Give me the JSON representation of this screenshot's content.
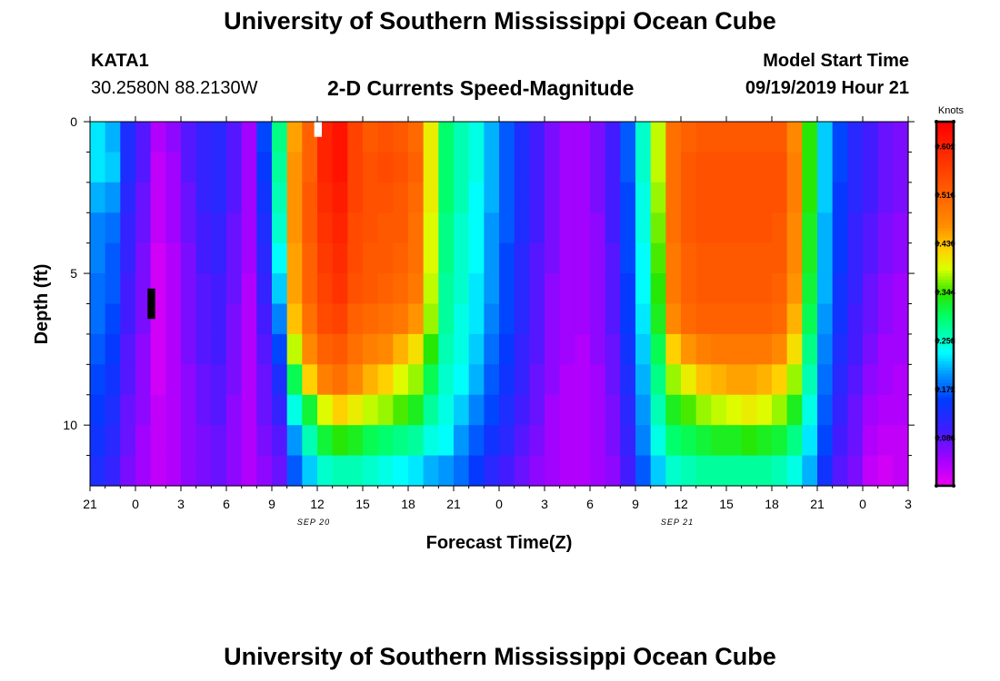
{
  "header": {
    "title": "University of Southern Mississippi Ocean Cube",
    "station_id": "KATA1",
    "coordinates": "30.2580N 88.2130W",
    "subtitle": "2-D Currents Speed-Magnitude",
    "model_start_label": "Model Start Time",
    "model_start_value": "09/19/2019 Hour 21"
  },
  "footer": {
    "title": "University of Southern Mississippi Ocean Cube"
  },
  "chart_data": {
    "type": "heatmap",
    "title": "2-D Currents Speed-Magnitude",
    "xlabel": "Forecast Time(Z)",
    "ylabel": "Depth (ft)",
    "x_range_hours": [
      0,
      54
    ],
    "x_ticks": [
      {
        "h": 0,
        "label": "21"
      },
      {
        "h": 3,
        "label": "0"
      },
      {
        "h": 6,
        "label": "3"
      },
      {
        "h": 9,
        "label": "6"
      },
      {
        "h": 12,
        "label": "9"
      },
      {
        "h": 15,
        "label": "12"
      },
      {
        "h": 18,
        "label": "15"
      },
      {
        "h": 21,
        "label": "18"
      },
      {
        "h": 24,
        "label": "21"
      },
      {
        "h": 27,
        "label": "0"
      },
      {
        "h": 30,
        "label": "3"
      },
      {
        "h": 33,
        "label": "6"
      },
      {
        "h": 36,
        "label": "9"
      },
      {
        "h": 39,
        "label": "12"
      },
      {
        "h": 42,
        "label": "15"
      },
      {
        "h": 45,
        "label": "18"
      },
      {
        "h": 48,
        "label": "21"
      },
      {
        "h": 51,
        "label": "0"
      },
      {
        "h": 54,
        "label": "3"
      }
    ],
    "date_labels": [
      {
        "h": 15,
        "label": "SEP 20"
      },
      {
        "h": 39,
        "label": "SEP 21"
      }
    ],
    "y_range_ft": [
      0,
      12
    ],
    "y_ticks": [
      {
        "v": 0,
        "label": "0"
      },
      {
        "v": 5,
        "label": "5"
      },
      {
        "v": 10,
        "label": "10"
      }
    ],
    "colorbar": {
      "unit": "Knots",
      "range": [
        0.0,
        0.645
      ],
      "ticks": [
        0.086,
        0.172,
        0.258,
        0.344,
        0.43,
        0.516,
        0.602
      ],
      "tick_labels": [
        "0.086",
        "0.172",
        "0.258",
        "0.344",
        "0.430",
        "0.516",
        "0.602"
      ]
    },
    "grid": false,
    "column_hours": 1,
    "depth_levels": 12,
    "columns_description": "Each inner array is one hourly column (hour 0 = 21Z Sep 19), 12 depth cells from surface (0 ft) to bottom (12 ft), speeds in knots.",
    "values": [
      [
        0.23,
        0.23,
        0.21,
        0.19,
        0.19,
        0.18,
        0.18,
        0.17,
        0.16,
        0.15,
        0.14,
        0.13
      ],
      [
        0.21,
        0.22,
        0.2,
        0.18,
        0.17,
        0.17,
        0.16,
        0.15,
        0.14,
        0.13,
        0.12,
        0.11
      ],
      [
        0.13,
        0.13,
        0.12,
        0.11,
        0.11,
        0.1,
        0.1,
        0.09,
        0.09,
        0.08,
        0.08,
        0.07
      ],
      [
        0.09,
        0.09,
        0.08,
        0.08,
        0.07,
        0.07,
        0.07,
        0.06,
        0.06,
        0.06,
        0.05,
        0.05
      ],
      [
        0.04,
        0.03,
        0.03,
        0.03,
        0.02,
        0.02,
        0.02,
        0.02,
        0.02,
        0.03,
        0.03,
        0.03
      ],
      [
        0.06,
        0.05,
        0.05,
        0.05,
        0.04,
        0.04,
        0.04,
        0.04,
        0.04,
        0.04,
        0.04,
        0.04
      ],
      [
        0.09,
        0.09,
        0.08,
        0.08,
        0.07,
        0.07,
        0.07,
        0.07,
        0.06,
        0.06,
        0.06,
        0.06
      ],
      [
        0.11,
        0.11,
        0.11,
        0.1,
        0.1,
        0.09,
        0.09,
        0.09,
        0.08,
        0.08,
        0.07,
        0.07
      ],
      [
        0.12,
        0.12,
        0.12,
        0.11,
        0.11,
        0.1,
        0.1,
        0.1,
        0.09,
        0.09,
        0.08,
        0.08
      ],
      [
        0.09,
        0.09,
        0.09,
        0.08,
        0.08,
        0.08,
        0.07,
        0.07,
        0.07,
        0.06,
        0.06,
        0.06
      ],
      [
        0.05,
        0.05,
        0.05,
        0.05,
        0.05,
        0.04,
        0.04,
        0.04,
        0.04,
        0.04,
        0.04,
        0.04
      ],
      [
        0.16,
        0.15,
        0.14,
        0.13,
        0.12,
        0.11,
        0.1,
        0.09,
        0.08,
        0.08,
        0.07,
        0.06
      ],
      [
        0.29,
        0.28,
        0.27,
        0.26,
        0.24,
        0.22,
        0.19,
        0.16,
        0.13,
        0.11,
        0.09,
        0.08
      ],
      [
        0.45,
        0.46,
        0.46,
        0.46,
        0.45,
        0.45,
        0.43,
        0.38,
        0.31,
        0.25,
        0.2,
        0.17
      ],
      [
        0.52,
        0.52,
        0.53,
        0.53,
        0.52,
        0.52,
        0.5,
        0.47,
        0.42,
        0.32,
        0.27,
        0.22
      ],
      [
        0.6,
        0.6,
        0.59,
        0.58,
        0.57,
        0.56,
        0.55,
        0.52,
        0.48,
        0.39,
        0.32,
        0.26
      ],
      [
        0.62,
        0.62,
        0.61,
        0.6,
        0.59,
        0.58,
        0.56,
        0.53,
        0.5,
        0.42,
        0.34,
        0.27
      ],
      [
        0.56,
        0.56,
        0.56,
        0.55,
        0.55,
        0.54,
        0.52,
        0.5,
        0.47,
        0.4,
        0.33,
        0.27
      ],
      [
        0.53,
        0.54,
        0.54,
        0.54,
        0.53,
        0.53,
        0.51,
        0.48,
        0.44,
        0.38,
        0.31,
        0.26
      ],
      [
        0.54,
        0.55,
        0.54,
        0.53,
        0.53,
        0.52,
        0.5,
        0.47,
        0.42,
        0.37,
        0.3,
        0.25
      ],
      [
        0.53,
        0.54,
        0.53,
        0.53,
        0.52,
        0.51,
        0.49,
        0.44,
        0.39,
        0.35,
        0.29,
        0.24
      ],
      [
        0.51,
        0.52,
        0.51,
        0.5,
        0.5,
        0.49,
        0.46,
        0.41,
        0.37,
        0.33,
        0.28,
        0.23
      ],
      [
        0.4,
        0.4,
        0.4,
        0.39,
        0.39,
        0.38,
        0.37,
        0.34,
        0.31,
        0.28,
        0.25,
        0.21
      ],
      [
        0.3,
        0.3,
        0.3,
        0.29,
        0.29,
        0.28,
        0.28,
        0.27,
        0.26,
        0.25,
        0.24,
        0.2
      ],
      [
        0.27,
        0.27,
        0.27,
        0.26,
        0.26,
        0.26,
        0.25,
        0.25,
        0.24,
        0.22,
        0.2,
        0.18
      ],
      [
        0.25,
        0.25,
        0.24,
        0.24,
        0.24,
        0.23,
        0.23,
        0.22,
        0.21,
        0.19,
        0.17,
        0.15
      ],
      [
        0.21,
        0.21,
        0.21,
        0.2,
        0.2,
        0.2,
        0.19,
        0.18,
        0.17,
        0.16,
        0.14,
        0.12
      ],
      [
        0.17,
        0.17,
        0.17,
        0.17,
        0.16,
        0.16,
        0.16,
        0.15,
        0.14,
        0.13,
        0.12,
        0.1
      ],
      [
        0.13,
        0.13,
        0.13,
        0.13,
        0.12,
        0.12,
        0.12,
        0.11,
        0.11,
        0.1,
        0.09,
        0.08
      ],
      [
        0.1,
        0.1,
        0.1,
        0.1,
        0.09,
        0.09,
        0.09,
        0.09,
        0.08,
        0.08,
        0.07,
        0.06
      ],
      [
        0.07,
        0.07,
        0.07,
        0.07,
        0.07,
        0.06,
        0.06,
        0.06,
        0.06,
        0.05,
        0.05,
        0.05
      ],
      [
        0.05,
        0.05,
        0.05,
        0.05,
        0.05,
        0.05,
        0.05,
        0.05,
        0.04,
        0.04,
        0.04,
        0.04
      ],
      [
        0.05,
        0.05,
        0.05,
        0.05,
        0.05,
        0.05,
        0.05,
        0.04,
        0.04,
        0.04,
        0.04,
        0.04
      ],
      [
        0.07,
        0.07,
        0.07,
        0.06,
        0.06,
        0.06,
        0.06,
        0.06,
        0.05,
        0.05,
        0.05,
        0.05
      ],
      [
        0.1,
        0.1,
        0.1,
        0.1,
        0.09,
        0.09,
        0.09,
        0.08,
        0.08,
        0.07,
        0.07,
        0.06
      ],
      [
        0.17,
        0.17,
        0.16,
        0.16,
        0.16,
        0.15,
        0.15,
        0.14,
        0.13,
        0.12,
        0.11,
        0.1
      ],
      [
        0.26,
        0.26,
        0.25,
        0.25,
        0.24,
        0.24,
        0.23,
        0.22,
        0.21,
        0.2,
        0.19,
        0.17
      ],
      [
        0.38,
        0.38,
        0.37,
        0.36,
        0.35,
        0.34,
        0.33,
        0.31,
        0.29,
        0.27,
        0.25,
        0.22
      ],
      [
        0.5,
        0.5,
        0.5,
        0.5,
        0.49,
        0.49,
        0.47,
        0.42,
        0.37,
        0.33,
        0.3,
        0.26
      ],
      [
        0.52,
        0.53,
        0.53,
        0.53,
        0.52,
        0.52,
        0.51,
        0.46,
        0.4,
        0.35,
        0.31,
        0.27
      ],
      [
        0.53,
        0.54,
        0.54,
        0.54,
        0.53,
        0.53,
        0.52,
        0.48,
        0.43,
        0.37,
        0.32,
        0.28
      ],
      [
        0.53,
        0.54,
        0.54,
        0.54,
        0.53,
        0.53,
        0.52,
        0.49,
        0.44,
        0.38,
        0.33,
        0.28
      ],
      [
        0.53,
        0.54,
        0.54,
        0.54,
        0.53,
        0.53,
        0.52,
        0.49,
        0.45,
        0.39,
        0.33,
        0.28
      ],
      [
        0.53,
        0.54,
        0.54,
        0.54,
        0.53,
        0.53,
        0.52,
        0.49,
        0.45,
        0.4,
        0.34,
        0.28
      ],
      [
        0.53,
        0.54,
        0.54,
        0.54,
        0.53,
        0.53,
        0.52,
        0.49,
        0.44,
        0.39,
        0.33,
        0.28
      ],
      [
        0.53,
        0.54,
        0.54,
        0.53,
        0.53,
        0.52,
        0.51,
        0.47,
        0.42,
        0.37,
        0.32,
        0.27
      ],
      [
        0.47,
        0.48,
        0.48,
        0.47,
        0.47,
        0.46,
        0.44,
        0.41,
        0.37,
        0.33,
        0.29,
        0.25
      ],
      [
        0.34,
        0.34,
        0.34,
        0.33,
        0.33,
        0.32,
        0.31,
        0.29,
        0.27,
        0.25,
        0.23,
        0.21
      ],
      [
        0.22,
        0.22,
        0.22,
        0.21,
        0.21,
        0.21,
        0.2,
        0.19,
        0.18,
        0.17,
        0.16,
        0.14
      ],
      [
        0.16,
        0.16,
        0.15,
        0.15,
        0.15,
        0.14,
        0.14,
        0.13,
        0.12,
        0.11,
        0.1,
        0.09
      ],
      [
        0.12,
        0.12,
        0.12,
        0.11,
        0.11,
        0.11,
        0.1,
        0.1,
        0.09,
        0.08,
        0.08,
        0.07
      ],
      [
        0.1,
        0.1,
        0.1,
        0.09,
        0.09,
        0.08,
        0.08,
        0.07,
        0.06,
        0.05,
        0.04,
        0.03
      ],
      [
        0.08,
        0.08,
        0.08,
        0.07,
        0.07,
        0.06,
        0.06,
        0.05,
        0.05,
        0.04,
        0.03,
        0.02
      ],
      [
        0.07,
        0.07,
        0.07,
        0.06,
        0.06,
        0.05,
        0.05,
        0.05,
        0.04,
        0.04,
        0.03,
        0.03
      ]
    ],
    "markers": [
      {
        "type": "missing-cell",
        "color": "#ffffff",
        "hour_range": [
          14.8,
          15.3
        ],
        "depth_range_ft": [
          0,
          0.5
        ]
      },
      {
        "type": "missing-cell",
        "color": "#000000",
        "hour_range": [
          3.8,
          4.3
        ],
        "depth_range_ft": [
          5.5,
          6.5
        ]
      }
    ]
  }
}
